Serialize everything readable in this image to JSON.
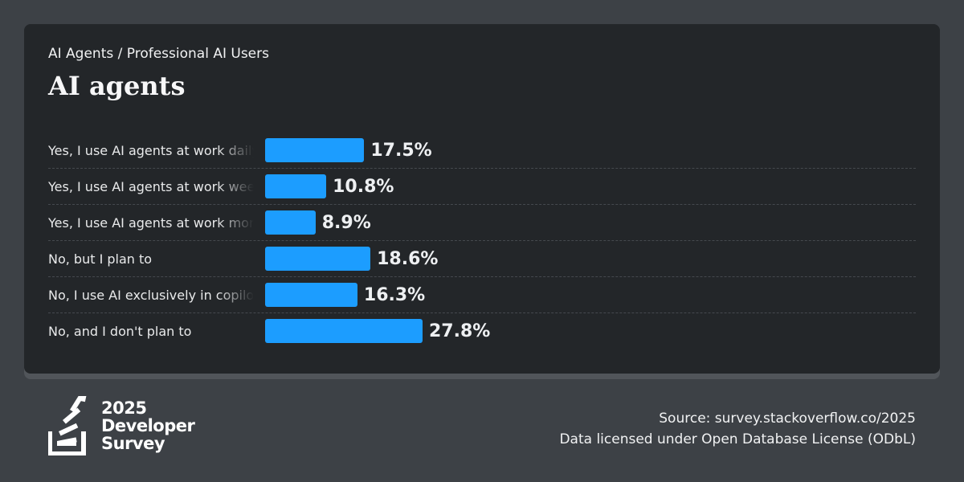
{
  "breadcrumb": "AI Agents / Professional AI Users",
  "title": "AI agents",
  "footer": {
    "source": "Source: survey.stackoverflow.co/2025",
    "license": "Data licensed under Open Database License (ODbL)"
  },
  "logo": {
    "line1": "2025",
    "line2": "Developer",
    "line3": "Survey"
  },
  "colors": {
    "bar": "#1c9dff",
    "background": "#3d4146",
    "card": "#232629"
  },
  "chart_data": {
    "type": "bar",
    "orientation": "horizontal",
    "categories": [
      "Yes, I use AI agents at work daily",
      "Yes, I use AI agents at work weekly",
      "Yes, I use AI agents at work monthly or infrequently",
      "No, but I plan to",
      "No, I use AI exclusively in copilot/autocomplete mode",
      "No, and I don't plan to"
    ],
    "values": [
      17.5,
      10.8,
      8.9,
      18.6,
      16.3,
      27.8
    ],
    "value_labels": [
      "17.5%",
      "10.8%",
      "8.9%",
      "18.6%",
      "16.3%",
      "27.8%"
    ],
    "xlim": [
      0,
      100
    ],
    "grid": false,
    "legend": "none"
  }
}
